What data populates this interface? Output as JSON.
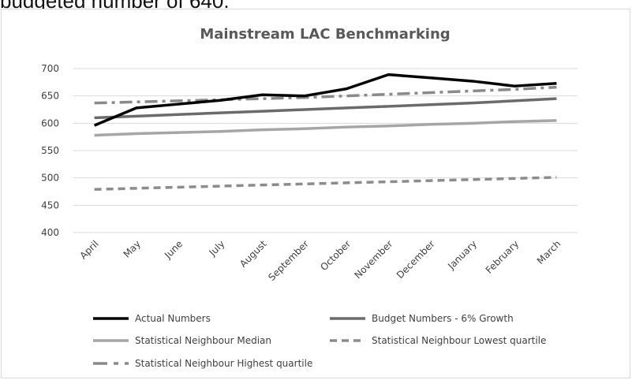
{
  "caption": "budgeted number of 640.",
  "chart_data": {
    "type": "line",
    "title": "Mainstream LAC Benchmarking",
    "xlabel": "",
    "ylabel": "",
    "ylim": [
      400,
      700
    ],
    "yticks": [
      400,
      450,
      500,
      550,
      600,
      650,
      700
    ],
    "grid": true,
    "legend_position": "bottom",
    "categories": [
      "April",
      "May",
      "June",
      "July",
      "August",
      "September",
      "October",
      "November",
      "December",
      "January",
      "February",
      "March"
    ],
    "series": [
      {
        "name": "Actual Numbers",
        "color": "#000000",
        "dash": "solid",
        "values": [
          596,
          628,
          635,
          642,
          652,
          650,
          663,
          689,
          683,
          677,
          668,
          673
        ]
      },
      {
        "name": "Budget Numbers - 6% Growth",
        "color": "#6b6b6b",
        "dash": "solid",
        "values": [
          610,
          613,
          616,
          619,
          622,
          625,
          628,
          631,
          634,
          637,
          641,
          645
        ]
      },
      {
        "name": "Statistical Neighbour Median",
        "color": "#a6a6a6",
        "dash": "solid",
        "values": [
          578,
          581,
          583,
          585,
          588,
          590,
          593,
          595,
          598,
          600,
          603,
          605
        ]
      },
      {
        "name": "Statistical Neighbour Lowest quartile",
        "color": "#8c8c8c",
        "dash": "dash",
        "values": [
          479,
          481,
          483,
          485,
          487,
          489,
          491,
          493,
          495,
          497,
          499,
          501
        ]
      },
      {
        "name": "Statistical Neighbour Highest quartile",
        "color": "#8a8a8a",
        "dash": "dashdot",
        "values": [
          637,
          639,
          641,
          643,
          645,
          647,
          650,
          653,
          656,
          659,
          662,
          666
        ]
      }
    ]
  }
}
